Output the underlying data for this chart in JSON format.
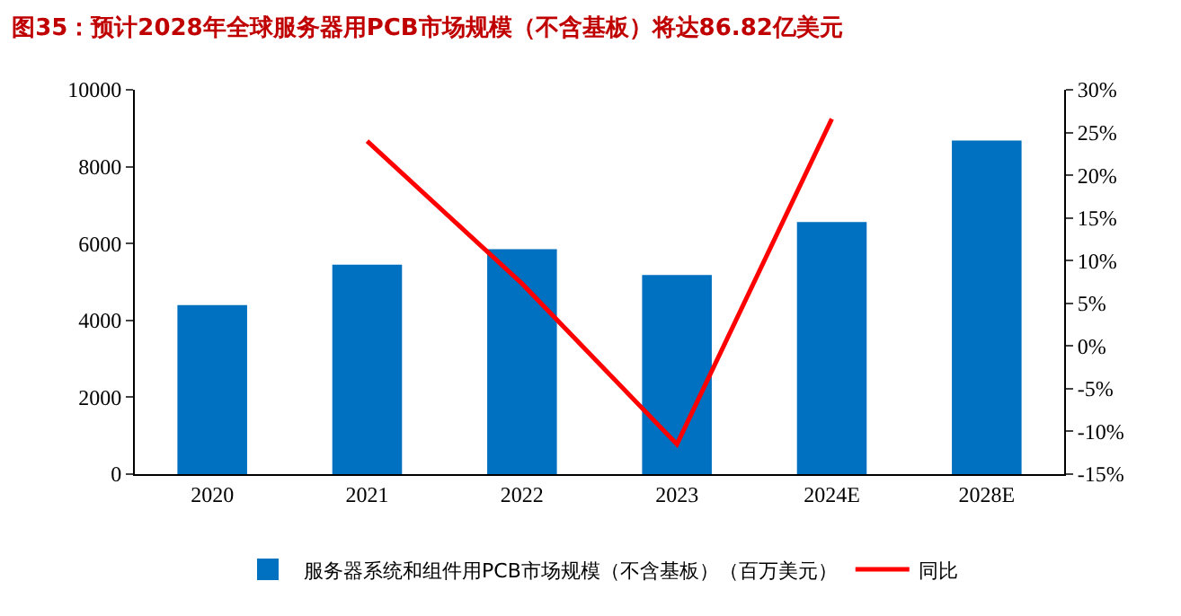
{
  "chart_data": {
    "type": "bar",
    "title": "图35：预计2028年全球服务器用PCB市场规模（不含基板）将达86.82亿美元",
    "categories": [
      "2020",
      "2021",
      "2022",
      "2023",
      "2024E",
      "2028E"
    ],
    "series": [
      {
        "name": "服务器系统和组件用PCB市场规模（不含基板）（百万美元）",
        "color": "#0070c0",
        "values": [
          4400,
          5450,
          5850,
          5180,
          6560,
          8682
        ]
      },
      {
        "name": "同比",
        "type": "line",
        "axis": "y2",
        "color": "#ff0000",
        "values": [
          null,
          24,
          7.3,
          -11.5,
          26.6,
          null
        ]
      }
    ],
    "ylim": [
      0,
      10000
    ],
    "yticks": [
      0,
      2000,
      4000,
      6000,
      8000,
      10000
    ],
    "y2lim": [
      -15,
      30
    ],
    "y2ticks": [
      {
        "value": -15,
        "label": "-15%"
      },
      {
        "value": -10,
        "label": "-10%"
      },
      {
        "value": -5,
        "label": "-5%"
      },
      {
        "value": 0,
        "label": "0%"
      },
      {
        "value": 5,
        "label": "5%"
      },
      {
        "value": 10,
        "label": "10%"
      },
      {
        "value": 15,
        "label": "15%"
      },
      {
        "value": 20,
        "label": "20%"
      },
      {
        "value": 25,
        "label": "25%"
      },
      {
        "value": 30,
        "label": "30%"
      }
    ],
    "grid": false,
    "legend": "bottom",
    "marker": "none",
    "line_style": "solid"
  }
}
